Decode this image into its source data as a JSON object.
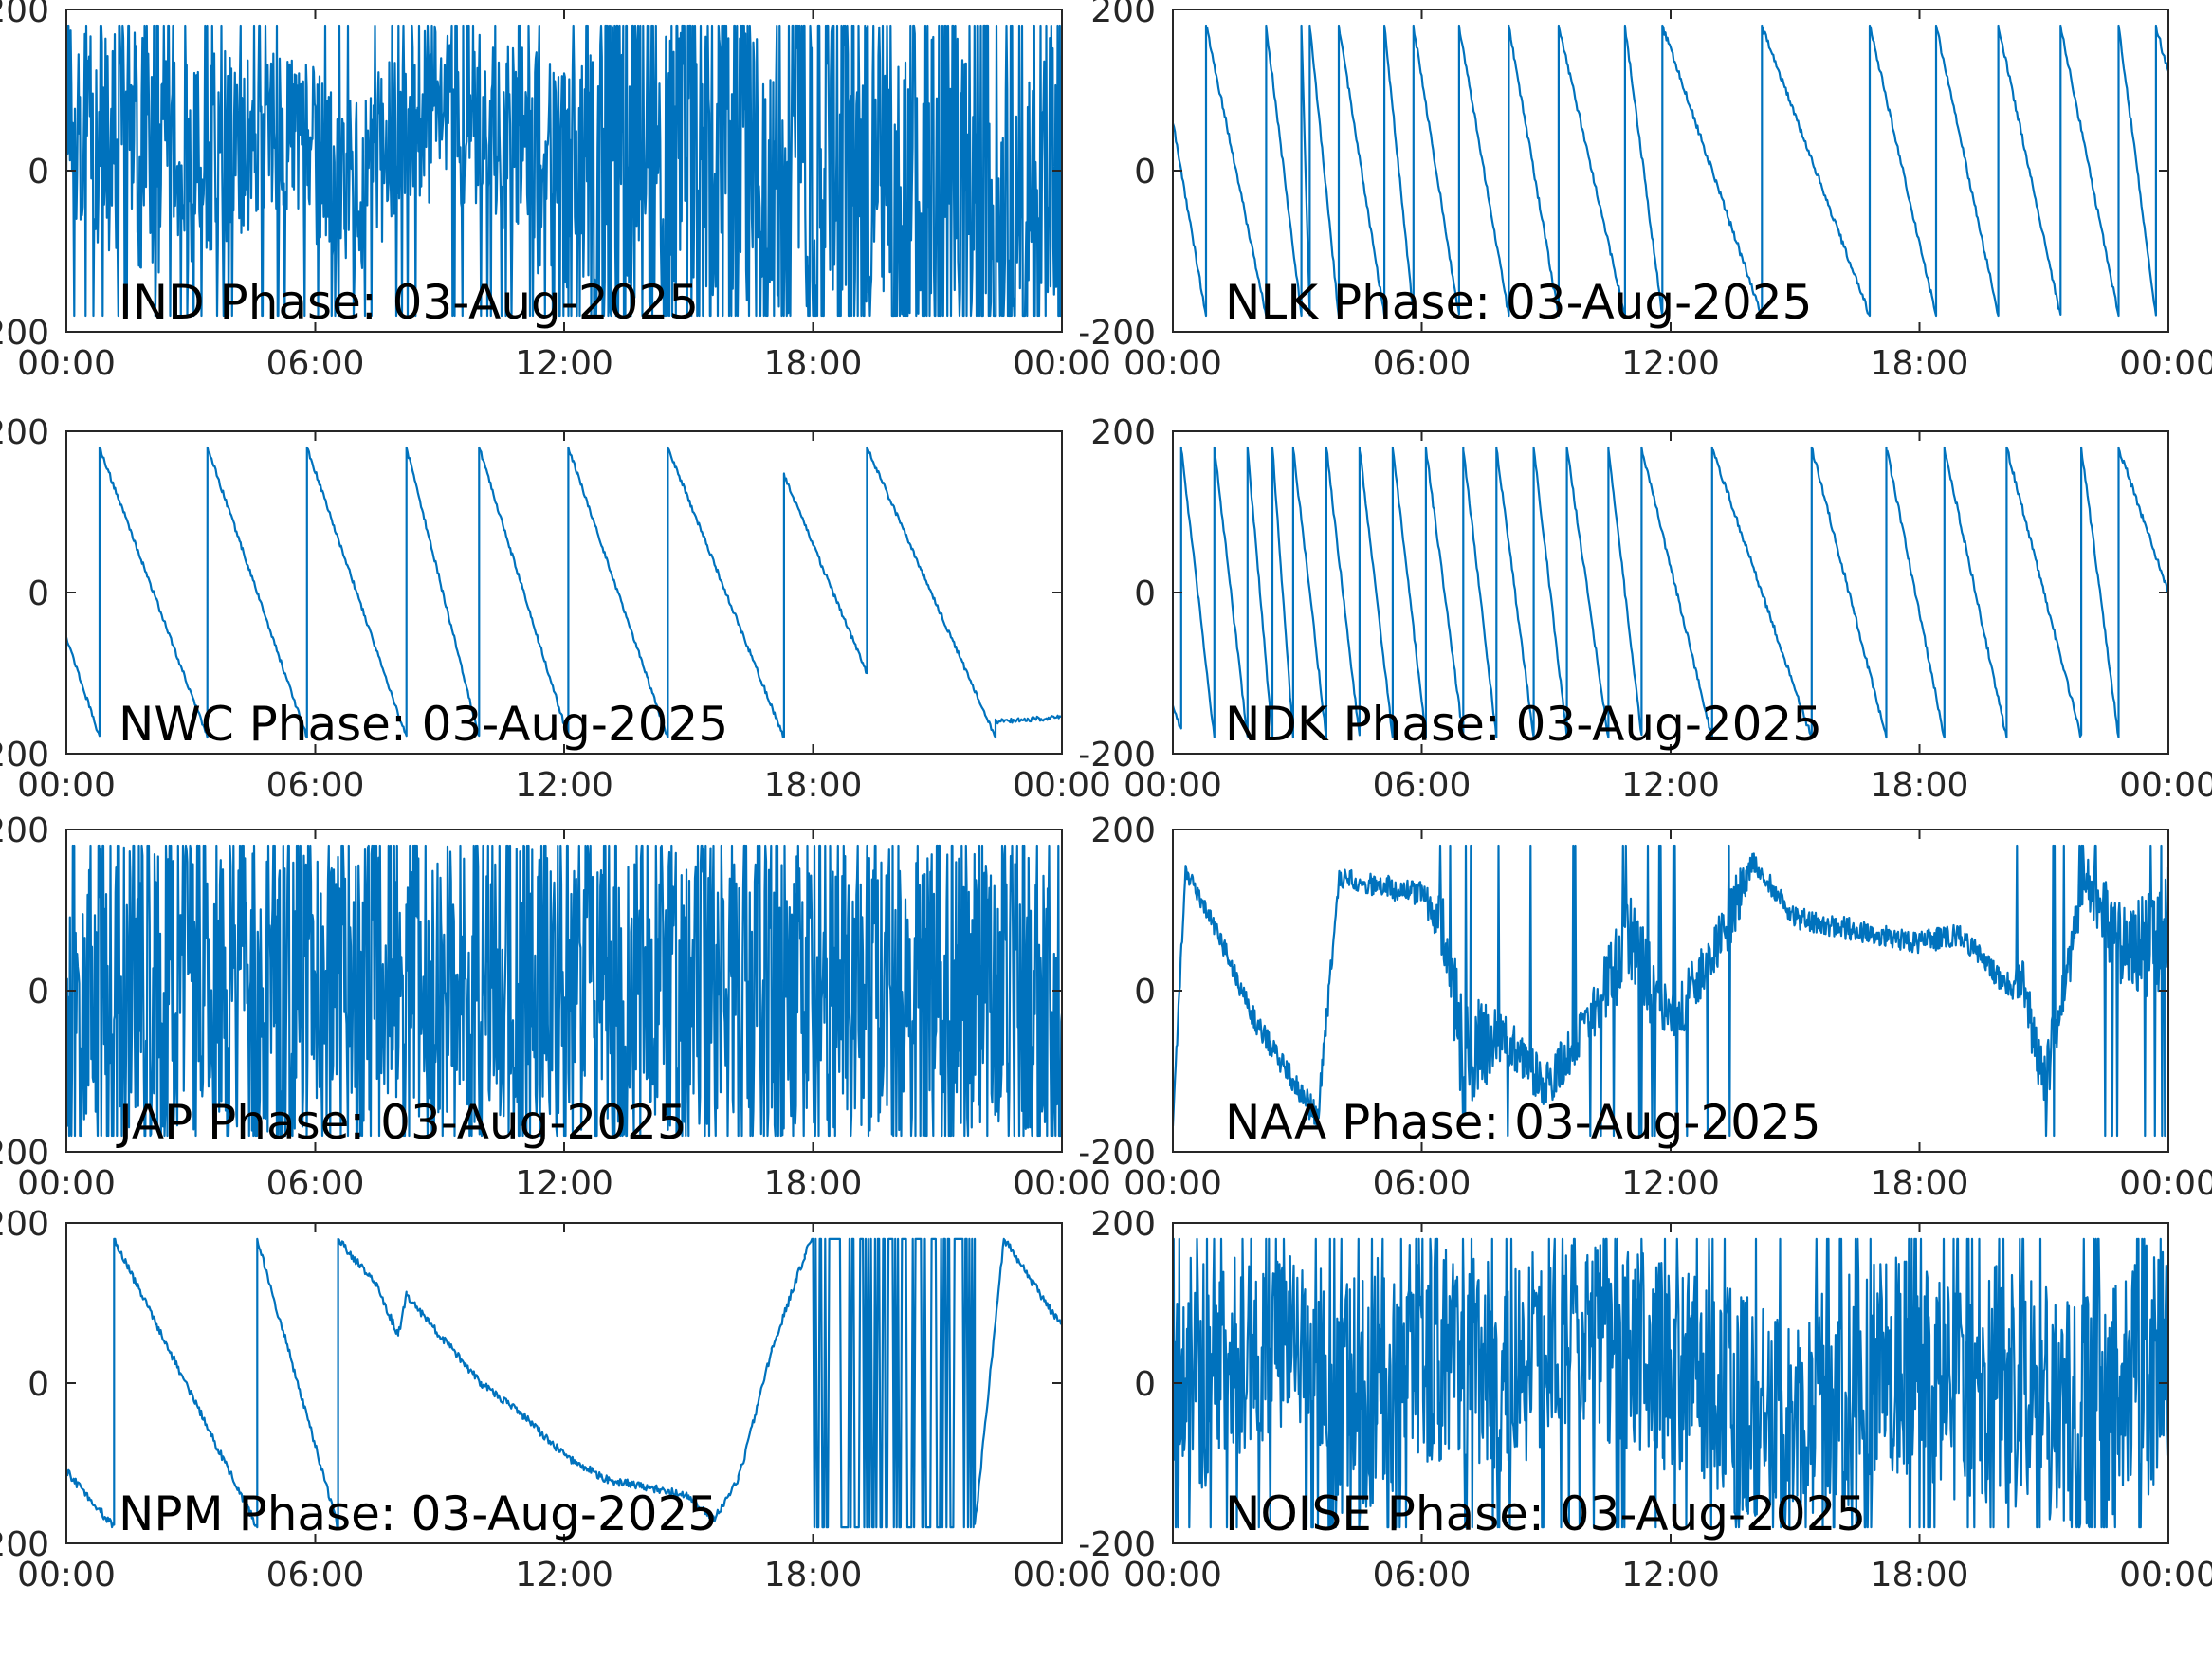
{
  "figure": {
    "background": "#ffffff",
    "line_color": "#0072BD",
    "axis_color": "#262626"
  },
  "chart_data": [
    {
      "type": "line",
      "label": "IND Phase: 03-Aug-2025",
      "xlim": [
        "00:00",
        "24:00"
      ],
      "xtick_labels": [
        "00:00",
        "06:00",
        "12:00",
        "18:00",
        "00:00"
      ],
      "ylim": [
        -200,
        200
      ],
      "ytick_labels": [
        "-200",
        "0",
        "200"
      ],
      "y_clip": [
        -180,
        180
      ],
      "series": [
        {
          "pattern": "noise",
          "x": [
            0,
            1,
            2,
            3,
            4,
            5,
            6,
            7,
            8,
            9,
            10,
            11,
            12,
            13,
            14,
            15,
            16,
            17,
            18,
            19,
            20,
            21,
            22,
            23,
            24
          ],
          "y": [
            60,
            40,
            20,
            0,
            30,
            50,
            20,
            -20,
            40,
            80,
            60,
            30,
            -40,
            0,
            10,
            0,
            20,
            -10,
            0,
            10,
            -10,
            0,
            20,
            0,
            10
          ],
          "spread": [
            120,
            140,
            150,
            140,
            120,
            100,
            110,
            120,
            110,
            110,
            120,
            130,
            170,
            180,
            180,
            180,
            180,
            180,
            180,
            180,
            180,
            180,
            180,
            180,
            180
          ],
          "wrap_density": [
            6,
            7,
            8,
            6,
            5,
            4,
            5,
            6,
            5,
            5,
            5,
            6,
            9,
            14,
            16,
            16,
            16,
            15,
            15,
            15,
            15,
            15,
            15,
            15,
            15
          ]
        }
      ]
    },
    {
      "type": "line",
      "label": "NLK Phase: 03-Aug-2025",
      "xlim": [
        "00:00",
        "24:00"
      ],
      "xtick_labels": [
        "00:00",
        "06:00",
        "12:00",
        "18:00",
        "00:00"
      ],
      "ylim": [
        -200,
        200
      ],
      "ytick_labels": [
        "-200",
        "0",
        "200"
      ],
      "y_clip": [
        -180,
        180
      ],
      "series": [
        {
          "pattern": "sawtooth",
          "x_start": 0,
          "y_start": 60,
          "resets": [
            [
              0.8,
              -180,
              180
            ],
            [
              2.25,
              -180,
              180
            ],
            [
              3.1,
              -180,
              180
            ],
            [
              3.3,
              -180,
              180
            ],
            [
              4.0,
              -180,
              180
            ],
            [
              5.1,
              -180,
              180
            ],
            [
              5.8,
              -180,
              180
            ],
            [
              6.9,
              -180,
              180
            ],
            [
              8.1,
              -180,
              180
            ],
            [
              9.3,
              -180,
              180
            ],
            [
              10.9,
              -180,
              180
            ],
            [
              11.8,
              -180,
              180
            ],
            [
              14.2,
              -180,
              180
            ],
            [
              16.8,
              -180,
              180
            ],
            [
              18.4,
              -180,
              180
            ],
            [
              19.9,
              -180,
              180
            ],
            [
              21.4,
              -180,
              180
            ],
            [
              22.8,
              -180,
              180
            ],
            [
              23.7,
              -180,
              180
            ]
          ],
          "x_end": 24,
          "y_end": 120,
          "jitter": 4
        }
      ]
    },
    {
      "type": "line",
      "label": "NWC Phase: 03-Aug-2025",
      "xlim": [
        "00:00",
        "24:00"
      ],
      "xtick_labels": [
        "00:00",
        "06:00",
        "12:00",
        "18:00",
        "00:00"
      ],
      "ylim": [
        -200,
        200
      ],
      "ytick_labels": [
        "-200",
        "0",
        "200"
      ],
      "y_clip": [
        -180,
        180
      ],
      "series": [
        {
          "pattern": "sawtooth",
          "x_start": 0,
          "y_start": -55,
          "resets": [
            [
              0.8,
              -180,
              180
            ],
            [
              3.4,
              -180,
              180
            ],
            [
              5.8,
              -180,
              180
            ],
            [
              8.2,
              -180,
              180
            ],
            [
              9.95,
              -180,
              180
            ],
            [
              12.1,
              -180,
              180
            ],
            [
              14.5,
              -180,
              180
            ],
            [
              17.3,
              -180,
              145
            ],
            [
              19.3,
              -100,
              180
            ],
            [
              22.4,
              -180,
              -160
            ]
          ],
          "x_end": 24,
          "y_end": -155,
          "jitter": 3
        }
      ]
    },
    {
      "type": "line",
      "label": "NDK Phase: 03-Aug-2025",
      "xlim": [
        "00:00",
        "24:00"
      ],
      "xtick_labels": [
        "00:00",
        "06:00",
        "12:00",
        "18:00",
        "00:00"
      ],
      "ylim": [
        -200,
        200
      ],
      "ytick_labels": [
        "-200",
        "0",
        "200"
      ],
      "y_clip": [
        -180,
        180
      ],
      "series": [
        {
          "pattern": "sawtooth",
          "x_start": 0,
          "y_start": -140,
          "resets": [
            [
              0.2,
              -170,
              180
            ],
            [
              1.0,
              -180,
              180
            ],
            [
              1.8,
              -180,
              180
            ],
            [
              2.4,
              -180,
              180
            ],
            [
              2.9,
              -180,
              180
            ],
            [
              3.7,
              -180,
              180
            ],
            [
              4.5,
              -180,
              180
            ],
            [
              5.3,
              -180,
              180
            ],
            [
              6.1,
              -180,
              180
            ],
            [
              7.0,
              -180,
              180
            ],
            [
              7.8,
              -180,
              180
            ],
            [
              8.7,
              -180,
              180
            ],
            [
              9.5,
              -180,
              180
            ],
            [
              10.5,
              -180,
              180
            ],
            [
              11.3,
              -180,
              180
            ],
            [
              13.0,
              -180,
              180
            ],
            [
              15.4,
              -180,
              180
            ],
            [
              17.2,
              -180,
              180
            ],
            [
              18.6,
              -180,
              180
            ],
            [
              20.1,
              -180,
              180
            ],
            [
              21.9,
              -180,
              180
            ],
            [
              22.8,
              -180,
              180
            ]
          ],
          "x_end": 24,
          "y_end": 0,
          "jitter": 4
        }
      ]
    },
    {
      "type": "line",
      "label": "JAP Phase: 03-Aug-2025",
      "xlim": [
        "00:00",
        "24:00"
      ],
      "xtick_labels": [
        "00:00",
        "06:00",
        "12:00",
        "18:00",
        "00:00"
      ],
      "ylim": [
        -200,
        200
      ],
      "ytick_labels": [
        "-200",
        "0",
        "200"
      ],
      "y_clip": [
        -180,
        180
      ],
      "series": [
        {
          "pattern": "noise",
          "x": [
            0,
            1,
            2,
            3,
            4,
            5,
            6,
            7,
            8,
            9,
            10,
            11,
            12,
            13,
            14,
            15,
            16,
            17,
            18,
            19,
            20,
            21,
            22,
            23,
            24
          ],
          "y": [
            0,
            10,
            -10,
            0,
            10,
            0,
            -10,
            0,
            10,
            0,
            0,
            10,
            0,
            -10,
            0,
            10,
            0,
            -10,
            0,
            10,
            0,
            -10,
            0,
            10,
            -50
          ],
          "spread": [
            180,
            180,
            180,
            180,
            180,
            180,
            180,
            180,
            180,
            180,
            180,
            180,
            180,
            180,
            180,
            180,
            180,
            180,
            180,
            180,
            180,
            180,
            180,
            180,
            180
          ],
          "wrap_density": [
            8,
            8,
            8,
            8,
            8,
            8,
            8,
            8,
            8,
            8,
            8,
            8,
            8,
            8,
            8,
            8,
            8,
            8,
            8,
            8,
            8,
            8,
            8,
            8,
            8
          ]
        }
      ]
    },
    {
      "type": "line",
      "label": "NAA Phase: 03-Aug-2025",
      "xlim": [
        "00:00",
        "24:00"
      ],
      "xtick_labels": [
        "00:00",
        "06:00",
        "12:00",
        "18:00",
        "00:00"
      ],
      "ylim": [
        -200,
        200
      ],
      "ytick_labels": [
        "-200",
        "0",
        "200"
      ],
      "y_clip": [
        -180,
        180
      ],
      "series": [
        {
          "pattern": "noise",
          "x": [
            0,
            0.3,
            1,
            2,
            3,
            3.5,
            4,
            5,
            6,
            6.5,
            7,
            8,
            9,
            10,
            11,
            12,
            13,
            13.5,
            14,
            15,
            16,
            17,
            18,
            19,
            20,
            20.5,
            21,
            22,
            23,
            24
          ],
          "y": [
            -170,
            150,
            80,
            -40,
            -120,
            -160,
            140,
            130,
            120,
            80,
            -80,
            -60,
            -120,
            -40,
            60,
            -40,
            40,
            100,
            160,
            90,
            80,
            70,
            60,
            70,
            10,
            10,
            -120,
            140,
            40,
            80
          ],
          "spread": [
            10,
            10,
            12,
            14,
            14,
            20,
            12,
            14,
            16,
            40,
            80,
            30,
            30,
            30,
            60,
            40,
            30,
            40,
            12,
            14,
            14,
            14,
            14,
            14,
            14,
            30,
            40,
            30,
            60,
            80
          ],
          "wrap_density": [
            0,
            0,
            0,
            0,
            0,
            2,
            1,
            0,
            0,
            3,
            5,
            1,
            1,
            1,
            3,
            2,
            2,
            3,
            0,
            0,
            0,
            0,
            0,
            0,
            0,
            2,
            4,
            3,
            3,
            4
          ]
        }
      ]
    },
    {
      "type": "line",
      "label": "NPM Phase: 03-Aug-2025",
      "xlim": [
        "00:00",
        "24:00"
      ],
      "xtick_labels": [
        "00:00",
        "06:00",
        "12:00",
        "18:00",
        "00:00"
      ],
      "ylim": [
        -200,
        200
      ],
      "ytick_labels": [
        "-200",
        "0",
        "200"
      ],
      "y_clip": [
        -180,
        180
      ],
      "series": [
        {
          "pattern": "sawtooth",
          "x_start": 0,
          "y_start": -110,
          "resets": [
            [
              1.15,
              -180,
              180
            ],
            [
              4.6,
              -180,
              180
            ],
            [
              6.55,
              -180,
              180
            ]
          ],
          "x_end": 24,
          "y_end": 70,
          "jitter": 5,
          "segments": [
            {
              "x": [
                6.55,
                7.5,
                8.0,
                8.2,
                9,
                10,
                11,
                12,
                13,
                14,
                15,
                15.6,
                16.2,
                17,
                17.8,
                18.0
              ],
              "y": [
                180,
                120,
                60,
                110,
                60,
                0,
                -40,
                -90,
                -120,
                -130,
                -140,
                -170,
                -120,
                40,
                160,
                180
              ]
            },
            {
              "x": [
                18.0,
                21.9
              ],
              "y": [
                -180,
                180
              ],
              "dense": true
            },
            {
              "x": [
                21.9,
                22.6,
                24
              ],
              "y": [
                -180,
                180,
                70
              ]
            }
          ]
        }
      ]
    },
    {
      "type": "line",
      "label": "NOISE Phase: 03-Aug-2025",
      "xlim": [
        "00:00",
        "24:00"
      ],
      "xtick_labels": [
        "00:00",
        "06:00",
        "12:00",
        "18:00",
        "00:00"
      ],
      "ylim": [
        -200,
        200
      ],
      "ytick_labels": [
        "-200",
        "0",
        "200"
      ],
      "y_clip": [
        -180,
        180
      ],
      "series": [
        {
          "pattern": "noise",
          "x": [
            0,
            1,
            2,
            3,
            4,
            5,
            6,
            7,
            8,
            9,
            10,
            11,
            12,
            13,
            14,
            15,
            16,
            17,
            18,
            19,
            20,
            21,
            22,
            23,
            24
          ],
          "y": [
            0,
            20,
            40,
            60,
            -20,
            0,
            40,
            20,
            20,
            40,
            60,
            40,
            20,
            0,
            -40,
            -60,
            -20,
            20,
            20,
            -20,
            0,
            -20,
            -40,
            0,
            20
          ],
          "spread": [
            160,
            140,
            120,
            100,
            150,
            160,
            140,
            140,
            130,
            130,
            120,
            130,
            140,
            140,
            150,
            140,
            150,
            140,
            140,
            150,
            150,
            150,
            150,
            160,
            170
          ],
          "wrap_density": [
            6,
            5,
            4,
            3,
            6,
            6,
            5,
            5,
            5,
            5,
            5,
            5,
            5,
            5,
            5,
            5,
            5,
            5,
            5,
            5,
            5,
            5,
            5,
            6,
            7
          ]
        }
      ]
    }
  ]
}
